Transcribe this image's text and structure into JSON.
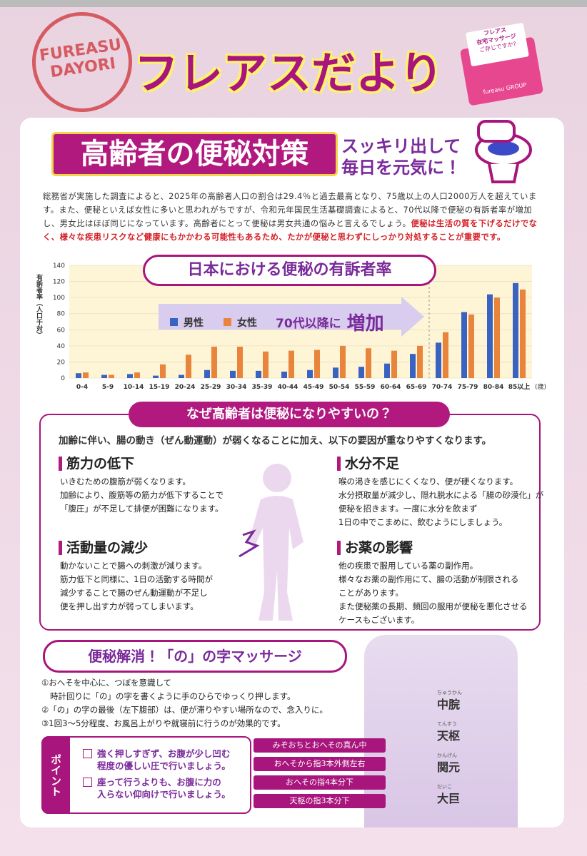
{
  "header": {
    "stamp_top": "FUREASU",
    "stamp_bottom": "DAYORI",
    "title": "フレアスだより",
    "envelope_brand": "フレアス",
    "envelope_text": "在宅マッサージ",
    "envelope_sub": "ご存じですか?",
    "envelope_group": "fureasu GROUP"
  },
  "article": {
    "title": "高齢者の便秘対策",
    "subtitle_line1": "スッキリ出して",
    "subtitle_line2": "毎日を元気に！",
    "body": "総務省が実施した調査によると、2025年の高齢者人口の割合は29.4％と過去最高となり、75歳以上の人口2000万人を超えています。また、便秘といえば女性に多いと思われがちですが、令和元年国民生活基礎調査によると、70代以降で便秘の有訴者率が増加し、男女比はほぼ同じになっています。高齢者にとって便秘は男女共通の悩みと言えるでしょう。",
    "body_emphasis": "便秘は生活の質を下げるだけでなく、様々な疾患リスクなど健康にもかかわる可能性もあるため、たかが便秘と思わずにしっかり対処することが重要です。"
  },
  "chart_data": {
    "type": "bar",
    "title": "日本における便秘の有訴者率",
    "ylabel": "有訴者率（人口千対）",
    "xlabel": "(歳)",
    "annotation": "70代以降に",
    "annotation_emphasis": "増加",
    "categories": [
      "0-4",
      "5-9",
      "10-14",
      "15-19",
      "20-24",
      "25-29",
      "30-34",
      "35-39",
      "40-44",
      "45-49",
      "50-54",
      "55-59",
      "60-64",
      "65-69",
      "70-74",
      "75-79",
      "80-84",
      "85以上"
    ],
    "series": [
      {
        "name": "男性",
        "color": "#3a62c0",
        "values": [
          6,
          4,
          5,
          3,
          4,
          10,
          9,
          9,
          8,
          10,
          13,
          14,
          18,
          30,
          44,
          82,
          104,
          118
        ]
      },
      {
        "name": "女性",
        "color": "#e8843c",
        "values": [
          7,
          4,
          7,
          17,
          29,
          39,
          39,
          33,
          34,
          35,
          40,
          37,
          34,
          40,
          57,
          79,
          100,
          110
        ]
      }
    ],
    "ylim": [
      0,
      140
    ],
    "yticks": [
      0,
      20,
      40,
      60,
      80,
      100,
      120,
      140
    ],
    "grid": true
  },
  "causes": {
    "title": "なぜ高齢者は便秘になりやすいの？",
    "intro": "加齢に伴い、腸の動き（ぜん動運動）が弱くなることに加え、以下の要因が重なりやすくなります。",
    "items": [
      {
        "heading": "筋力の低下",
        "lines": [
          "いきむための腹筋が弱くなります。",
          "加齢により、腹筋等の筋力が低下することで",
          "「腹圧」が不足して排便が困難になります。"
        ]
      },
      {
        "heading": "水分不足",
        "lines": [
          "喉の渇きを感じにくくなり、便が硬くなります。",
          "水分摂取量が減少し、隠れ脱水による「腸の砂漠化」が",
          "便秘を招きます。一度に水分を飲まず",
          "1日の中でこまめに、飲むようにしましょう。"
        ]
      },
      {
        "heading": "活動量の減少",
        "lines": [
          "動かないことで腸への刺激が減ります。",
          "筋力低下と同様に、1日の活動する時間が",
          "減少することで腸のぜん動運動が不足し",
          "便を押し出す力が弱ってしまいます。"
        ]
      },
      {
        "heading": "お薬の影響",
        "lines": [
          "他の疾患で服用している薬の副作用。",
          "様々なお薬の副作用にて、腸の活動が制限される",
          "ことがあります。",
          "また便秘薬の長期、頻回の服用が便秘を悪化させる",
          "ケースもございます。"
        ]
      }
    ]
  },
  "massage": {
    "title": "便秘解消！「の」の字マッサージ",
    "steps": [
      "①おへそを中心に、つぼを意識して",
      "時計回りに「の」の字を書くように手のひらでゆっくり押します。",
      "②「の」の字の最後（左下腹部）は、便が滞りやすい場所なので、念入りに。",
      "③1回3～5分程度、お風呂上がりや就寝前に行うのが効果的です。"
    ],
    "point_label": "ポイント",
    "points": [
      [
        "強く押しすぎず、お腹が少し凹む",
        "程度の優しい圧で行いましょう。"
      ],
      [
        "座って行うよりも、お腹に力の",
        "入らない仰向けで行いましょう。"
      ]
    ],
    "locations": [
      "みぞおちとおへその真ん中",
      "おへそから指3本外側左右",
      "おへその指4本分下",
      "天枢の指3本分下"
    ],
    "acupoints": [
      {
        "name": "中脘",
        "reading": "ちゅうかん"
      },
      {
        "name": "天枢",
        "reading": "てんすう"
      },
      {
        "name": "関元",
        "reading": "かんげん"
      },
      {
        "name": "大巨",
        "reading": "だいこ"
      }
    ]
  }
}
